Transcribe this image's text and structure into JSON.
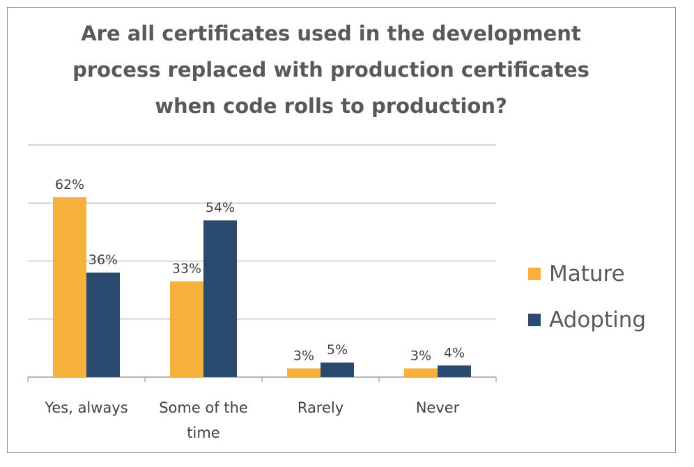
{
  "chart_data": {
    "type": "bar",
    "title": "Are all certificates used in the development process replaced with production certificates when code rolls to production?",
    "categories": [
      "Yes, always",
      "Some of the time",
      "Rarely",
      "Never"
    ],
    "series": [
      {
        "name": "Mature",
        "values": [
          62,
          33,
          3,
          3
        ],
        "labels": [
          "62%",
          "33%",
          "3%",
          "3%"
        ],
        "color": "#F6B13D"
      },
      {
        "name": "Adopting",
        "values": [
          36,
          54,
          5,
          4
        ],
        "labels": [
          "36%",
          "54%",
          "5%",
          "4%"
        ],
        "color": "#2B4A6F"
      }
    ],
    "ylim": [
      0,
      80
    ],
    "y_gridlines": [
      20,
      40,
      60,
      80
    ],
    "grid": true,
    "legend_position": "right",
    "xlabel": "",
    "ylabel": ""
  }
}
